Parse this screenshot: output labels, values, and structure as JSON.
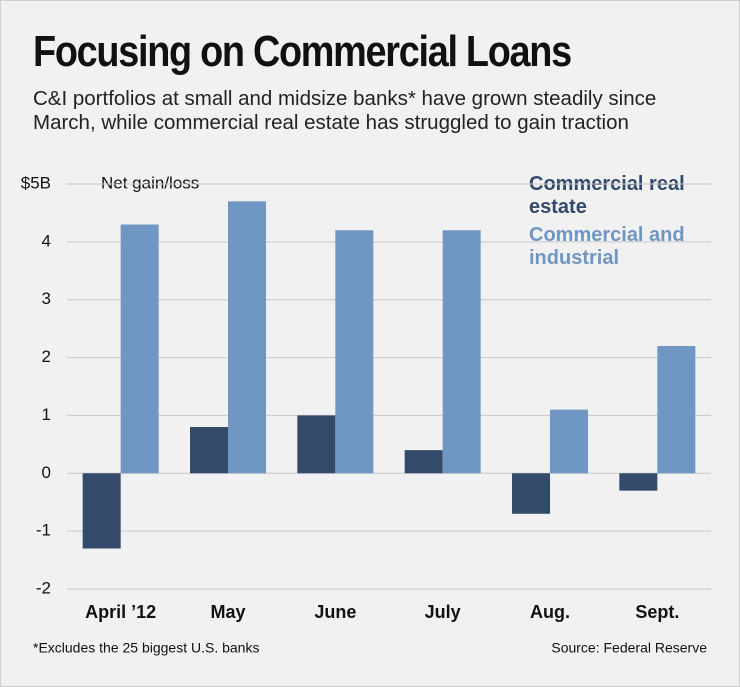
{
  "chart_data": {
    "type": "bar",
    "title": "Focusing on Commercial Loans",
    "subtitle": "C&I portfolios at small and midsize banks* have grown steadily since March, while commercial real estate has struggled to gain traction",
    "y_label": "Net gain/loss",
    "categories": [
      "April ’12",
      "May",
      "June",
      "July",
      "Aug.",
      "Sept."
    ],
    "series": [
      {
        "name": "Commercial real estate",
        "color": "#334a6b",
        "values": [
          -1.3,
          0.8,
          1.0,
          0.4,
          -0.7,
          -0.3
        ]
      },
      {
        "name": "Commercial and industrial",
        "color": "#7096c4",
        "values": [
          4.3,
          4.7,
          4.2,
          4.2,
          1.1,
          2.2
        ]
      }
    ],
    "ylim": [
      -2,
      5
    ],
    "yticks": [
      -2,
      -1,
      0,
      1,
      2,
      3,
      4,
      {
        "value": 5,
        "label": "$5B"
      }
    ],
    "grid": true,
    "footnote": "*Excludes the 25 biggest U.S. banks",
    "source": "Source: Federal Reserve"
  }
}
